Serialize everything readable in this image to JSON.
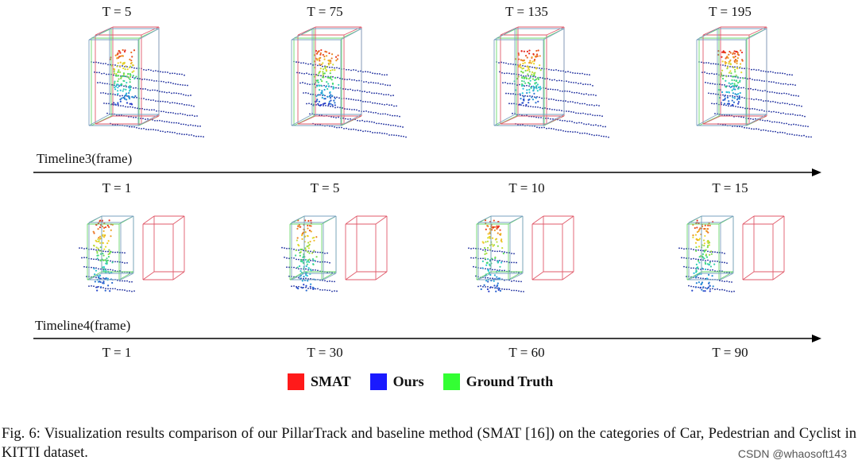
{
  "row1_labels": [
    "T = 5",
    "T = 75",
    "T = 135",
    "T = 195"
  ],
  "timeline3": {
    "name": "Timeline3(frame)",
    "labels": [
      "T = 1",
      "T = 5",
      "T = 10",
      "T = 15"
    ]
  },
  "timeline4": {
    "name": "Timeline4(frame)",
    "labels": [
      "T = 1",
      "T = 30",
      "T = 60",
      "T = 90"
    ]
  },
  "legend": [
    {
      "label": "SMAT",
      "color": "#ff1a1a"
    },
    {
      "label": "Ours",
      "color": "#1a1aff"
    },
    {
      "label": "Ground Truth",
      "color": "#33ff33"
    }
  ],
  "caption": "Fig. 6: Visualization results comparison of our PillarTrack and baseline method (SMAT [16]) on the categories of Car, Pedestrian and Cyclist in KITTI dataset.",
  "watermark": "CSDN @whaosoft143",
  "colors": {
    "smat": "#e05a6a",
    "ours": "#1a2a9c",
    "gt": "#6ad86a"
  }
}
